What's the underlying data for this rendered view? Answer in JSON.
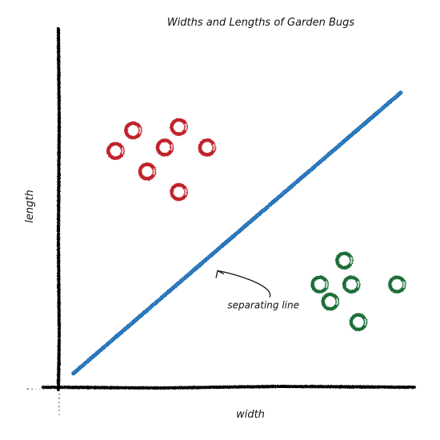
{
  "chart_data": {
    "type": "scatter",
    "title": "Widths and Lengths of Garden Bugs",
    "xlabel": "width",
    "ylabel": "length",
    "xlim": [
      0,
      10
    ],
    "ylim": [
      0,
      10
    ],
    "grid": false,
    "series": [
      {
        "color": "#c0202c",
        "points": [
          [
            2.1,
            7.5
          ],
          [
            3.4,
            7.6
          ],
          [
            1.6,
            6.9
          ],
          [
            3.0,
            7.0
          ],
          [
            4.2,
            7.0
          ],
          [
            2.5,
            6.3
          ],
          [
            3.4,
            5.7
          ]
        ]
      },
      {
        "color": "#1e6e38",
        "points": [
          [
            8.1,
            3.7
          ],
          [
            7.4,
            3.0
          ],
          [
            8.3,
            3.0
          ],
          [
            9.6,
            3.0
          ],
          [
            7.7,
            2.5
          ],
          [
            8.5,
            1.9
          ]
        ]
      }
    ],
    "line": {
      "color": "#1f6db4",
      "from": [
        0.4,
        0.4
      ],
      "to": [
        9.7,
        8.6
      ]
    },
    "annotations": [
      {
        "text": "separating line",
        "text_at": [
          5.8,
          2.3
        ],
        "arrow_tip": [
          4.5,
          3.4
        ]
      }
    ]
  }
}
